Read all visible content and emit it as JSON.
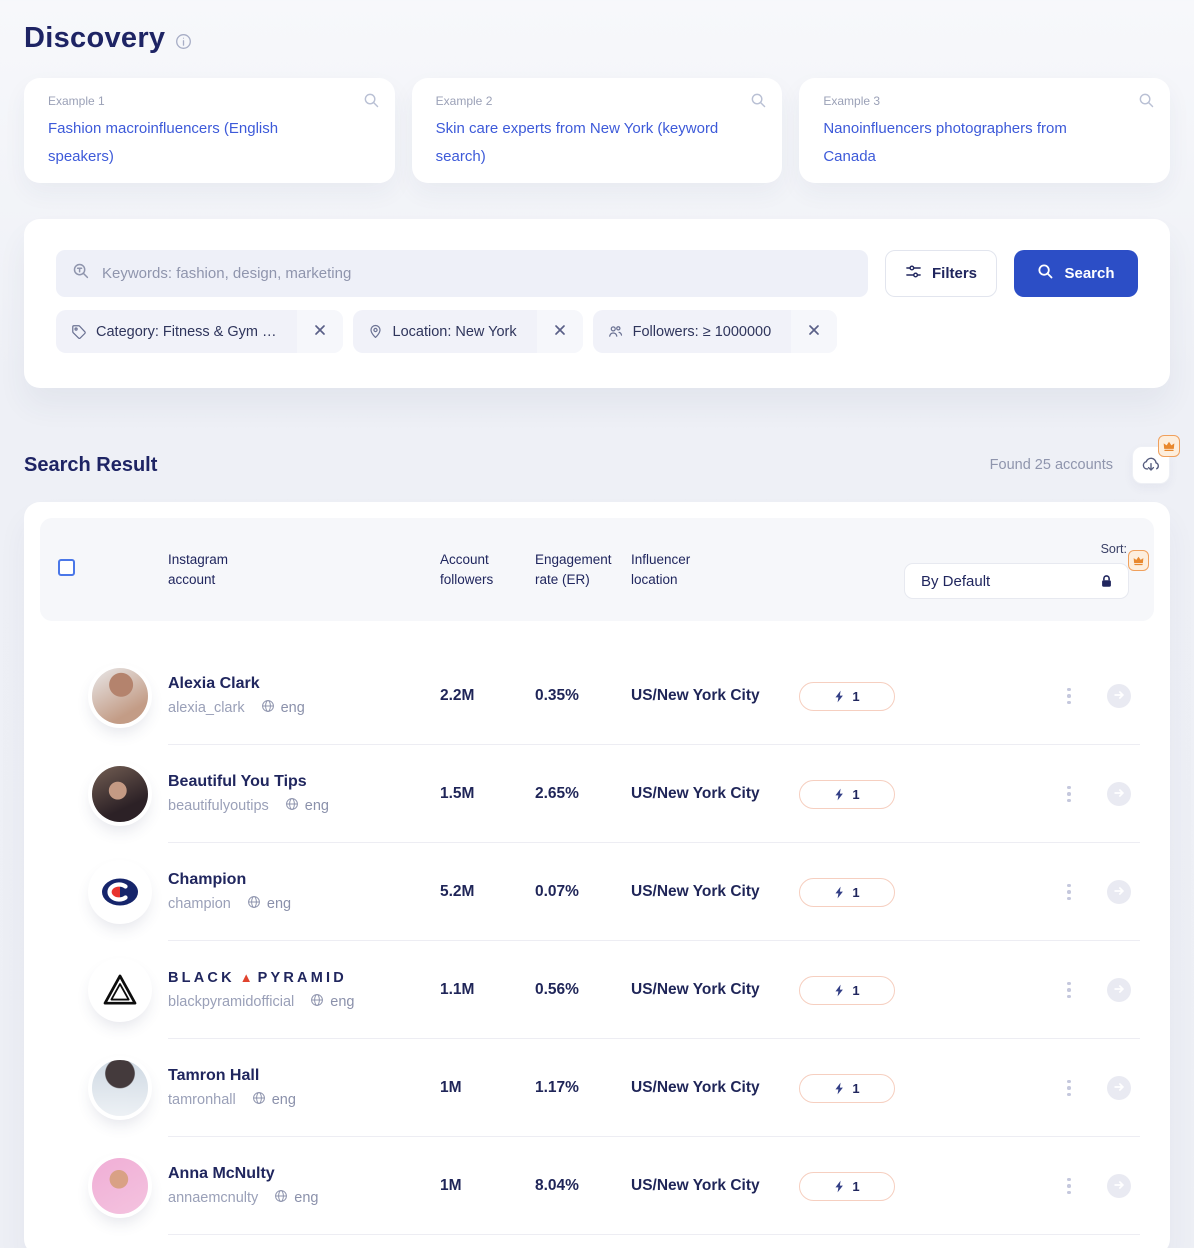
{
  "header": {
    "title": "Discovery"
  },
  "examples": [
    {
      "label": "Example 1",
      "text": "Fashion macroinfluencers (English speakers)"
    },
    {
      "label": "Example 2",
      "text": "Skin care experts from New York (keyword search)"
    },
    {
      "label": "Example 3",
      "text": "Nanoinfluencers photographers from Canada"
    }
  ],
  "search": {
    "keyword_placeholder": "Keywords: fashion, design, marketing",
    "filters_label": "Filters",
    "search_label": "Search",
    "chips": [
      {
        "icon": "tag-icon",
        "label": "Category: Fitness & Gym …"
      },
      {
        "icon": "location-pin-icon",
        "label": "Location: New York"
      },
      {
        "icon": "followers-icon",
        "label": "Followers: ≥ 1000000"
      }
    ]
  },
  "results": {
    "heading": "Search Result",
    "found": "Found 25 accounts",
    "sort_label": "Sort:",
    "sort_value": "By Default"
  },
  "table": {
    "columns": [
      "Instagram account",
      "Account followers",
      "Engagement rate (ER)",
      "Influencer location"
    ],
    "rows": [
      {
        "avatar": "alexia",
        "name": "Alexia Clark",
        "username": "alexia_clark",
        "language": "eng",
        "followers": "2.2M",
        "engagement_rate": "0.35%",
        "location": "US/New York City",
        "lightning_count": "1"
      },
      {
        "avatar": "beautifulyoutips",
        "name": "Beautiful You Tips",
        "username": "beautifulyoutips",
        "language": "eng",
        "followers": "1.5M",
        "engagement_rate": "2.65%",
        "location": "US/New York City",
        "lightning_count": "1"
      },
      {
        "avatar": "champion",
        "name": "Champion",
        "username": "champion",
        "language": "eng",
        "followers": "5.2M",
        "engagement_rate": "0.07%",
        "location": "US/New York City",
        "lightning_count": "1"
      },
      {
        "avatar": "blackpyramid",
        "name": "BLACK ▲ PYRAMID",
        "username": "blackpyramidofficial",
        "language": "eng",
        "followers": "1.1M",
        "engagement_rate": "0.56%",
        "location": "US/New York City",
        "lightning_count": "1"
      },
      {
        "avatar": "tamron",
        "name": "Tamron Hall",
        "username": "tamronhall",
        "language": "eng",
        "followers": "1M",
        "engagement_rate": "1.17%",
        "location": "US/New York City",
        "lightning_count": "1"
      },
      {
        "avatar": "anna",
        "name": "Anna McNulty",
        "username": "annaemcnulty",
        "language": "eng",
        "followers": "1M",
        "engagement_rate": "8.04%",
        "location": "US/New York City",
        "lightning_count": "1"
      }
    ]
  },
  "colors": {
    "primary_blue": "#2c4ec6",
    "link_blue": "#3d5ad9",
    "navy_text": "#20265e",
    "muted_text": "#9aa0b8",
    "crown_orange": "#e8882e",
    "lightning_pill_border": "#f6cfc0",
    "pyramid_triangle_red": "#e0432e"
  }
}
